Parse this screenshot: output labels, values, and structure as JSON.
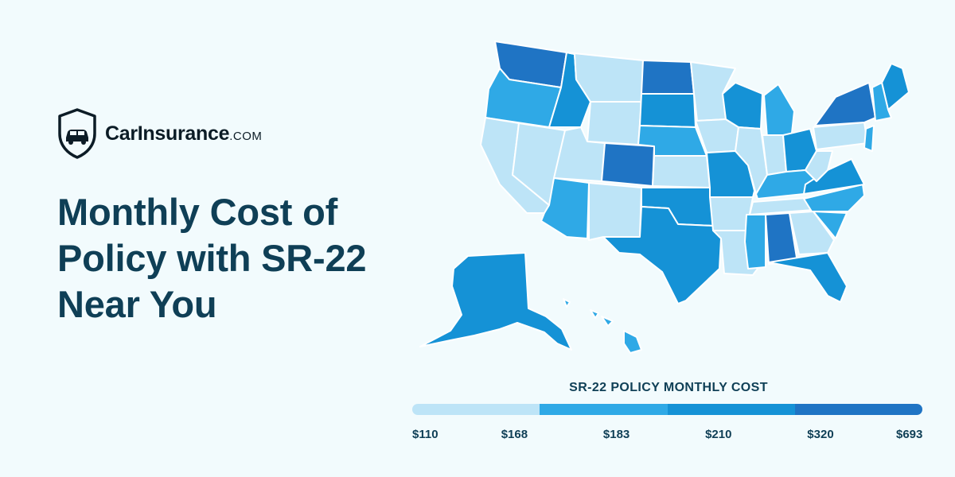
{
  "brand": {
    "name": "CarInsurance",
    "tld": ".COM",
    "icon": "shield-car-icon"
  },
  "headline": [
    "Monthly Cost of",
    "Policy with SR-22",
    "Near You"
  ],
  "legend": {
    "title": "SR-22 POLICY MONTHLY COST",
    "labels": [
      "$110",
      "$168",
      "$183",
      "$210",
      "$320",
      "$693"
    ],
    "colors": [
      "#bde4f7",
      "#2fa9e6",
      "#1592d6",
      "#1f74c4"
    ]
  },
  "map": {
    "regions": [
      {
        "name": "washington",
        "tier": 3
      },
      {
        "name": "oregon",
        "tier": 1
      },
      {
        "name": "california",
        "tier": 0
      },
      {
        "name": "nevada",
        "tier": 0
      },
      {
        "name": "idaho",
        "tier": 2
      },
      {
        "name": "montana",
        "tier": 0
      },
      {
        "name": "wyoming",
        "tier": 0
      },
      {
        "name": "utah",
        "tier": 0
      },
      {
        "name": "arizona",
        "tier": 1
      },
      {
        "name": "colorado",
        "tier": 3
      },
      {
        "name": "new-mexico",
        "tier": 0
      },
      {
        "name": "north-dakota",
        "tier": 3
      },
      {
        "name": "south-dakota",
        "tier": 2
      },
      {
        "name": "nebraska",
        "tier": 1
      },
      {
        "name": "kansas",
        "tier": 0
      },
      {
        "name": "oklahoma",
        "tier": 2
      },
      {
        "name": "texas",
        "tier": 2
      },
      {
        "name": "minnesota",
        "tier": 0
      },
      {
        "name": "iowa",
        "tier": 0
      },
      {
        "name": "missouri",
        "tier": 2
      },
      {
        "name": "arkansas",
        "tier": 0
      },
      {
        "name": "louisiana",
        "tier": 0
      },
      {
        "name": "wisconsin",
        "tier": 2
      },
      {
        "name": "illinois",
        "tier": 0
      },
      {
        "name": "michigan",
        "tier": 1
      },
      {
        "name": "indiana",
        "tier": 0
      },
      {
        "name": "ohio",
        "tier": 2
      },
      {
        "name": "kentucky",
        "tier": 1
      },
      {
        "name": "tennessee",
        "tier": 0
      },
      {
        "name": "mississippi",
        "tier": 1
      },
      {
        "name": "alabama",
        "tier": 3
      },
      {
        "name": "georgia",
        "tier": 0
      },
      {
        "name": "florida",
        "tier": 2
      },
      {
        "name": "south-carolina",
        "tier": 1
      },
      {
        "name": "north-carolina",
        "tier": 1
      },
      {
        "name": "virginia",
        "tier": 2
      },
      {
        "name": "west-virginia",
        "tier": 0
      },
      {
        "name": "pennsylvania",
        "tier": 0
      },
      {
        "name": "new-york",
        "tier": 3
      },
      {
        "name": "maine",
        "tier": 2
      },
      {
        "name": "new-england",
        "tier": 1
      },
      {
        "name": "new-jersey",
        "tier": 1
      },
      {
        "name": "alaska",
        "tier": 2
      },
      {
        "name": "hawaii",
        "tier": 1
      }
    ]
  }
}
